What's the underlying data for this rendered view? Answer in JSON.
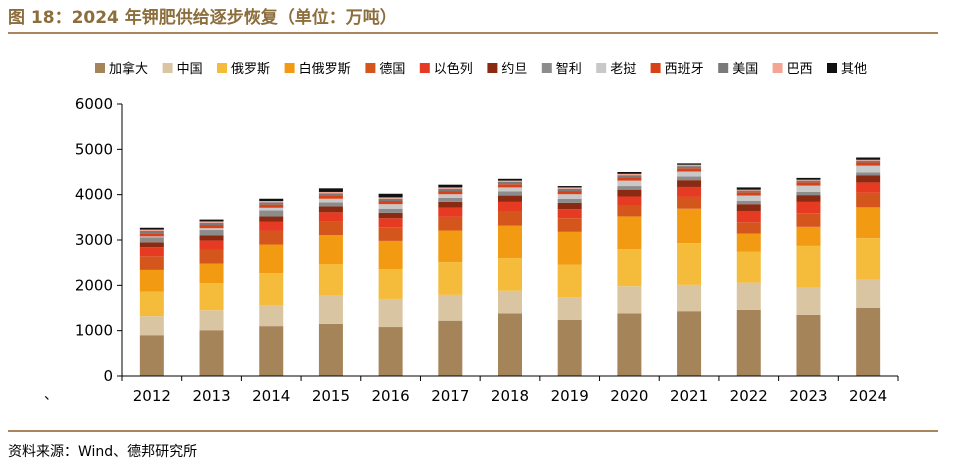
{
  "title": "图 18：2024 年钾肥供给逐步恢复（单位：万吨）",
  "source": "资料来源：Wind、德邦研究所",
  "stray_mark": "、",
  "chart_data": {
    "type": "bar",
    "stacked": true,
    "categories": [
      "2012",
      "2013",
      "2014",
      "2015",
      "2016",
      "2017",
      "2018",
      "2019",
      "2020",
      "2021",
      "2022",
      "2023",
      "2024"
    ],
    "ylim": [
      0,
      6000
    ],
    "yticks": [
      0,
      1000,
      2000,
      3000,
      4000,
      5000,
      6000
    ],
    "legend_position": "top",
    "grid": false,
    "series": [
      {
        "name": "加拿大",
        "color": "#a68459",
        "values": [
          900,
          1010,
          1100,
          1150,
          1080,
          1220,
          1380,
          1240,
          1380,
          1430,
          1460,
          1350,
          1500
        ]
      },
      {
        "name": "中国",
        "color": "#d9c5a2",
        "values": [
          420,
          440,
          450,
          620,
          620,
          570,
          500,
          500,
          600,
          580,
          600,
          600,
          640
        ]
      },
      {
        "name": "俄罗斯",
        "color": "#f5bc3c",
        "values": [
          540,
          600,
          720,
          700,
          660,
          720,
          720,
          720,
          820,
          920,
          680,
          920,
          900
        ]
      },
      {
        "name": "白俄罗斯",
        "color": "#f29a12",
        "values": [
          480,
          430,
          630,
          640,
          620,
          700,
          720,
          720,
          720,
          760,
          400,
          420,
          680
        ]
      },
      {
        "name": "德国",
        "color": "#d4561c",
        "values": [
          300,
          310,
          300,
          300,
          300,
          300,
          320,
          300,
          240,
          260,
          250,
          300,
          320
        ]
      },
      {
        "name": "以色列",
        "color": "#e63a22",
        "values": [
          200,
          200,
          200,
          200,
          200,
          200,
          200,
          200,
          200,
          220,
          250,
          250,
          230
        ]
      },
      {
        "name": "约旦",
        "color": "#8b2a12",
        "values": [
          110,
          110,
          120,
          130,
          120,
          130,
          140,
          140,
          150,
          150,
          150,
          150,
          160
        ]
      },
      {
        "name": "智利",
        "color": "#8c8c8c",
        "values": [
          110,
          120,
          130,
          90,
          90,
          90,
          90,
          90,
          80,
          80,
          70,
          70,
          60
        ]
      },
      {
        "name": "老挝",
        "color": "#c8c8c8",
        "values": [
          20,
          40,
          60,
          80,
          100,
          80,
          90,
          100,
          120,
          110,
          120,
          140,
          150
        ]
      },
      {
        "name": "西班牙",
        "color": "#d94218",
        "values": [
          70,
          70,
          70,
          70,
          70,
          70,
          70,
          70,
          70,
          70,
          70,
          70,
          70
        ]
      },
      {
        "name": "美国",
        "color": "#7a7a7a",
        "values": [
          50,
          50,
          50,
          50,
          50,
          50,
          50,
          50,
          50,
          50,
          40,
          40,
          40
        ]
      },
      {
        "name": "巴西",
        "color": "#f4a594",
        "values": [
          30,
          30,
          30,
          30,
          30,
          30,
          30,
          30,
          30,
          30,
          20,
          20,
          20
        ]
      },
      {
        "name": "其他",
        "color": "#111111",
        "values": [
          40,
          40,
          50,
          80,
          80,
          60,
          40,
          30,
          40,
          30,
          50,
          40,
          50
        ]
      }
    ]
  }
}
